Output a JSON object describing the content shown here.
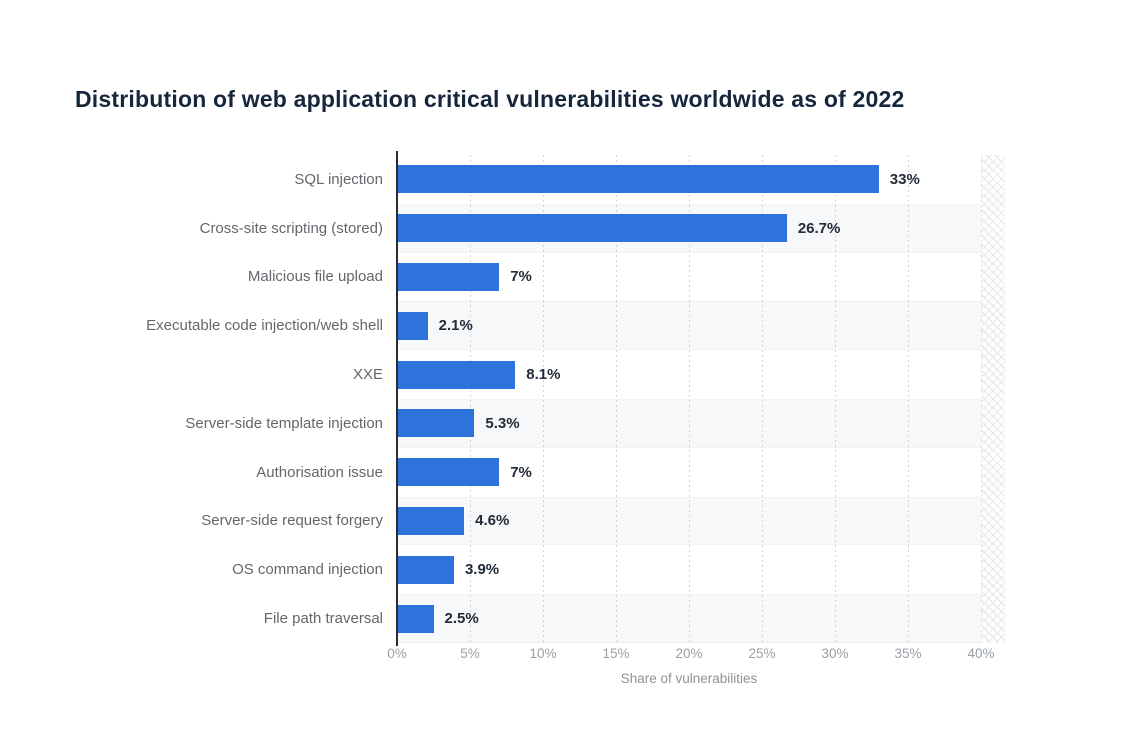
{
  "chart_data": {
    "type": "bar",
    "orientation": "horizontal",
    "title": "Distribution of web application critical vulnerabilities worldwide as of 2022",
    "categories": [
      "SQL injection",
      "Cross-site scripting (stored)",
      "Malicious file upload",
      "Executable code injection/web shell",
      "XXE",
      "Server-side template injection",
      "Authorisation issue",
      "Server-side request forgery",
      "OS command injection",
      "File path traversal"
    ],
    "values": [
      33,
      26.7,
      7,
      2.1,
      8.1,
      5.3,
      7,
      4.6,
      3.9,
      2.5
    ],
    "value_labels": [
      "33%",
      "26.7%",
      "7%",
      "2.1%",
      "8.1%",
      "5.3%",
      "7%",
      "4.6%",
      "3.9%",
      "2.5%"
    ],
    "xlabel": "Share of vulnerabilities",
    "ylabel": "",
    "xlim": [
      0,
      40
    ],
    "x_tick_step": 5,
    "x_ticks": [
      "0%",
      "5%",
      "10%",
      "15%",
      "20%",
      "25%",
      "30%",
      "35%",
      "40%"
    ],
    "grid": "vertical-dotted",
    "legend": "none",
    "row_striping": "alternate-even-rows-grey",
    "colors": {
      "bar": "#2e73dc",
      "title": "#16263d",
      "category_label": "#63676c",
      "value_label": "#222b38",
      "tick_label": "#9aa0a6",
      "stripe": "#f7f8f9",
      "background": "#ffffff"
    }
  }
}
